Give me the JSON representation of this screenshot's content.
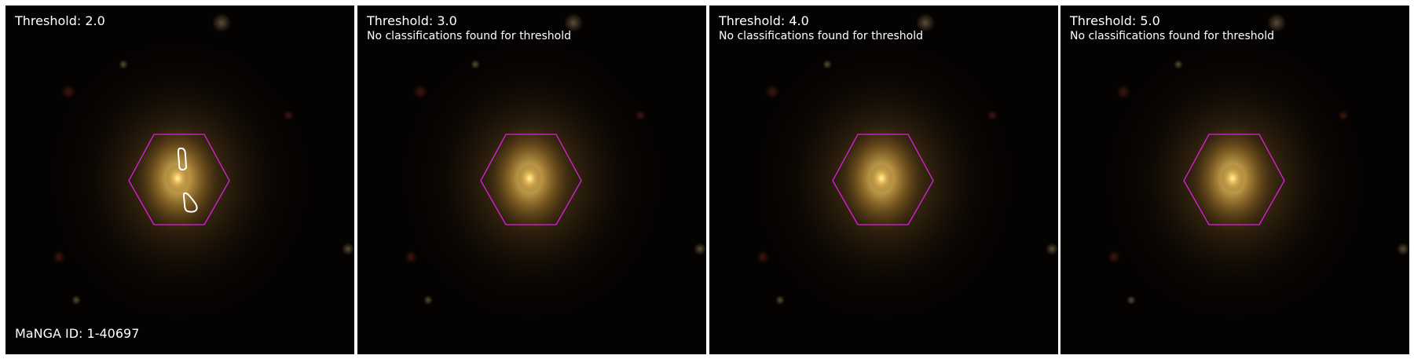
{
  "figure": {
    "manga_id_label": "MaNGA ID: 1-40697",
    "colors": {
      "hexagon": "#e020e0",
      "contour": "#ffffff",
      "text": "#ffffff",
      "background": "#ffffff"
    },
    "panels": [
      {
        "threshold_label": "Threshold: 2.0",
        "message": "",
        "has_contours": true
      },
      {
        "threshold_label": "Threshold: 3.0",
        "message": "No classifications found for threshold",
        "has_contours": false
      },
      {
        "threshold_label": "Threshold: 4.0",
        "message": "No classifications found for threshold",
        "has_contours": false
      },
      {
        "threshold_label": "Threshold: 5.0",
        "message": "No classifications found for threshold",
        "has_contours": false
      }
    ]
  }
}
